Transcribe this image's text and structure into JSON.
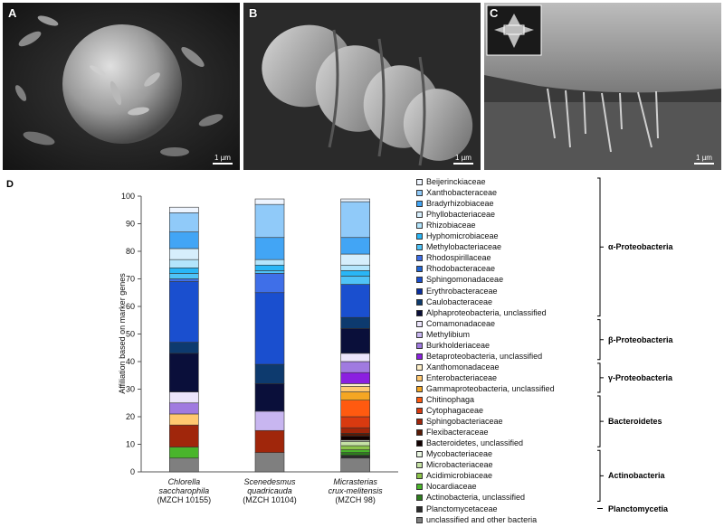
{
  "panels": [
    {
      "label": "A",
      "scale": "1 µm"
    },
    {
      "label": "B",
      "scale": "1 µm"
    },
    {
      "label": "C",
      "scale": "1 µm"
    }
  ],
  "panel_d_label": "D",
  "chart_data": {
    "type": "bar",
    "stacked": true,
    "ylabel": "Affiliation based on marker genes",
    "ylim": [
      0,
      100
    ],
    "yticks": [
      0,
      10,
      20,
      30,
      40,
      50,
      60,
      70,
      80,
      90,
      100
    ],
    "categories": [
      {
        "species": "Chlorella",
        "species2": "saccharophila",
        "strain": "(MZCH 10155)"
      },
      {
        "species": "Scenedesmus",
        "species2": "quadricauda",
        "strain": "(MZCH 10104)"
      },
      {
        "species": "Micrasterias",
        "species2": "crux-melitensis",
        "strain": "(MZCH 98)"
      }
    ],
    "series": [
      {
        "name": "unclassified and other bacteria",
        "color": "#7f7f7f",
        "values": [
          5,
          7,
          5
        ]
      },
      {
        "name": "Planctomycetaceae",
        "color": "#2b2b2b",
        "values": [
          0,
          0,
          1
        ]
      },
      {
        "name": "Actinobacteria, unclassified",
        "color": "#2e7d1e",
        "values": [
          0,
          0,
          1
        ]
      },
      {
        "name": "Nocardiaceae",
        "color": "#49b52b",
        "values": [
          4,
          0,
          1
        ]
      },
      {
        "name": "Acidimicrobiaceae",
        "color": "#8bc34a",
        "values": [
          0,
          0,
          1.5
        ]
      },
      {
        "name": "Microbacteriaceae",
        "color": "#c5e1a5",
        "values": [
          0,
          0,
          1.5
        ]
      },
      {
        "name": "Mycobacteriaceae",
        "color": "#e8f5e0",
        "values": [
          0,
          0,
          0.5
        ]
      },
      {
        "name": "Bacteroidetes, unclassified",
        "color": "#120000",
        "values": [
          0,
          0,
          1.5
        ]
      },
      {
        "name": "Flexibacteraceae",
        "color": "#5a1a05",
        "values": [
          0,
          0,
          1
        ]
      },
      {
        "name": "Sphingobacteriaceae",
        "color": "#a0260b",
        "values": [
          8,
          8,
          2
        ]
      },
      {
        "name": "Cytophagaceae",
        "color": "#d93a10",
        "values": [
          0,
          0,
          4
        ]
      },
      {
        "name": "Chitinophaga",
        "color": "#ff5a10",
        "values": [
          0,
          0,
          6
        ]
      },
      {
        "name": "Gammaproteobacteria, unclassified",
        "color": "#f5a623",
        "values": [
          0,
          0,
          3
        ]
      },
      {
        "name": "Enterobacteriaceae",
        "color": "#ffc870",
        "values": [
          4,
          0,
          2
        ]
      },
      {
        "name": "Xanthomonadaceae",
        "color": "#fff0c8",
        "values": [
          0,
          0,
          1
        ]
      },
      {
        "name": "Betaproteobacteria, unclassified",
        "color": "#8b1fe0",
        "values": [
          0,
          0,
          4
        ]
      },
      {
        "name": "Burkholderiaceae",
        "color": "#a07ae0",
        "values": [
          4,
          0,
          4
        ]
      },
      {
        "name": "Methylibium",
        "color": "#c8b6f0",
        "values": [
          0,
          7,
          0
        ]
      },
      {
        "name": "Comamonadaceae",
        "color": "#ebe4fb",
        "values": [
          4,
          0,
          3
        ]
      },
      {
        "name": "Alphaproteobacteria, unclassified",
        "color": "#0a0f3a",
        "values": [
          14,
          10,
          9
        ]
      },
      {
        "name": "Caulobacteraceae",
        "color": "#0d3a6e",
        "values": [
          4,
          7,
          4
        ]
      },
      {
        "name": "Erythrobacteraceae",
        "color": "#0a2fa0",
        "values": [
          0,
          0,
          0
        ]
      },
      {
        "name": "Sphingomonadaceae",
        "color": "#1a4fcf",
        "values": [
          22,
          26,
          12
        ]
      },
      {
        "name": "Rhodobacteraceae",
        "color": "#2166d6",
        "values": [
          0,
          0,
          0
        ]
      },
      {
        "name": "Rhodospirillaceae",
        "color": "#3f6fe8",
        "values": [
          1,
          7,
          0
        ]
      },
      {
        "name": "Methylobacteriaceae",
        "color": "#4fc3f7",
        "values": [
          2,
          1,
          3
        ]
      },
      {
        "name": "Hyphomicrobiaceae",
        "color": "#29b6f6",
        "values": [
          2,
          2,
          2
        ]
      },
      {
        "name": "Rhizobiaceae",
        "color": "#b3e5fc",
        "values": [
          3,
          2,
          2
        ]
      },
      {
        "name": "Phyllobacteriaceae",
        "color": "#d6eefc",
        "values": [
          4,
          0,
          4
        ]
      },
      {
        "name": "Bradyrhizobiaceae",
        "color": "#42a5f5",
        "values": [
          6,
          8,
          6
        ]
      },
      {
        "name": "Xanthobacteraceae",
        "color": "#90caf9",
        "values": [
          7,
          12,
          13
        ]
      },
      {
        "name": "Beijerinckiaceae",
        "color": "#eef5ff",
        "values": [
          2,
          2,
          1
        ]
      }
    ]
  },
  "legend": {
    "items": [
      {
        "name": "Beijerinckiaceae",
        "color": "#eef5ff"
      },
      {
        "name": "Xanthobacteraceae",
        "color": "#90caf9"
      },
      {
        "name": "Bradyrhizobiaceae",
        "color": "#42a5f5"
      },
      {
        "name": "Phyllobacteriaceae",
        "color": "#d6eefc"
      },
      {
        "name": "Rhizobiaceae",
        "color": "#b3e5fc"
      },
      {
        "name": "Hyphomicrobiaceae",
        "color": "#29b6f6"
      },
      {
        "name": "Methylobacteriaceae",
        "color": "#4fc3f7"
      },
      {
        "name": "Rhodospirillaceae",
        "color": "#3f6fe8"
      },
      {
        "name": "Rhodobacteraceae",
        "color": "#2166d6"
      },
      {
        "name": "Sphingomonadaceae",
        "color": "#1a4fcf"
      },
      {
        "name": "Erythrobacteraceae",
        "color": "#0a2fa0"
      },
      {
        "name": "Caulobacteraceae",
        "color": "#0d3a6e"
      },
      {
        "name": "Alphaproteobacteria, unclassified",
        "color": "#0a0f3a"
      },
      {
        "name": "Comamonadaceae",
        "color": "#ebe4fb"
      },
      {
        "name": "Methylibium",
        "color": "#c8b6f0"
      },
      {
        "name": "Burkholderiaceae",
        "color": "#a07ae0"
      },
      {
        "name": "Betaproteobacteria, unclassified",
        "color": "#8b1fe0"
      },
      {
        "name": "Xanthomonadaceae",
        "color": "#fff0c8"
      },
      {
        "name": "Enterobacteriaceae",
        "color": "#ffc870"
      },
      {
        "name": "Gammaproteobacteria, unclassified",
        "color": "#f5a623"
      },
      {
        "name": "Chitinophaga",
        "color": "#ff5a10"
      },
      {
        "name": "Cytophagaceae",
        "color": "#d93a10"
      },
      {
        "name": "Sphingobacteriaceae",
        "color": "#a0260b"
      },
      {
        "name": "Flexibacteraceae",
        "color": "#5a1a05"
      },
      {
        "name": "Bacteroidetes, unclassified",
        "color": "#120000"
      },
      {
        "name": "Mycobacteriaceae",
        "color": "#e8f5e0"
      },
      {
        "name": "Microbacteriaceae",
        "color": "#c5e1a5"
      },
      {
        "name": "Acidimicrobiaceae",
        "color": "#8bc34a"
      },
      {
        "name": "Nocardiaceae",
        "color": "#49b52b"
      },
      {
        "name": "Actinobacteria, unclassified",
        "color": "#2e7d1e"
      },
      {
        "name": "Planctomycetaceae",
        "color": "#2b2b2b"
      },
      {
        "name": "unclassified and other bacteria",
        "color": "#7f7f7f"
      }
    ],
    "groups": [
      {
        "name": "α-Proteobacteria",
        "first": 0,
        "last": 12
      },
      {
        "name": "β-Proteobacteria",
        "first": 13,
        "last": 16
      },
      {
        "name": "γ-Proteobacteria",
        "first": 17,
        "last": 19
      },
      {
        "name": "Bacteroidetes",
        "first": 20,
        "last": 24
      },
      {
        "name": "Actinobacteria",
        "first": 25,
        "last": 29
      },
      {
        "name": "Planctomycetia",
        "first": 30,
        "last": 30
      }
    ]
  }
}
